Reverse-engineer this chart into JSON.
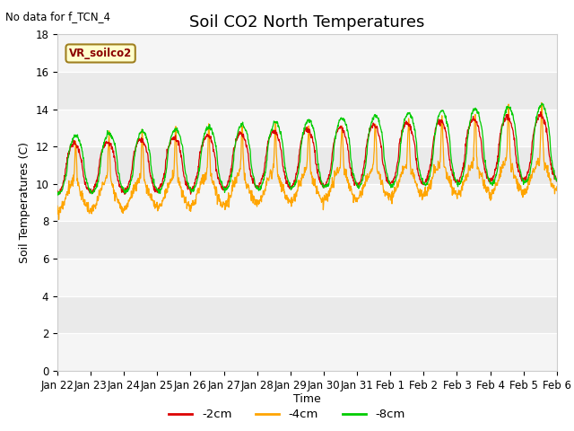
{
  "title": "Soil CO2 North Temperatures",
  "subtitle": "No data for f_TCN_4",
  "ylabel": "Soil Temperatures (C)",
  "xlabel": "Time",
  "box_label": "VR_soilco2",
  "ylim": [
    0,
    18
  ],
  "yticks": [
    0,
    2,
    4,
    6,
    8,
    10,
    12,
    14,
    16,
    18
  ],
  "xtick_labels": [
    "Jan 22",
    "Jan 23",
    "Jan 24",
    "Jan 25",
    "Jan 26",
    "Jan 27",
    "Jan 28",
    "Jan 29",
    "Jan 30",
    "Jan 31",
    "Feb 1",
    "Feb 2",
    "Feb 3",
    "Feb 4",
    "Feb 5",
    "Feb 6"
  ],
  "color_2cm": "#dd0000",
  "color_4cm": "#ffa500",
  "color_8cm": "#00cc00",
  "legend_labels": [
    "-2cm",
    "-4cm",
    "-8cm"
  ],
  "title_fontsize": 13,
  "label_fontsize": 9,
  "tick_fontsize": 8.5,
  "n_days": 15,
  "pts_per_day": 96,
  "base_temp": 10.5,
  "trend_per_day": 0.08
}
